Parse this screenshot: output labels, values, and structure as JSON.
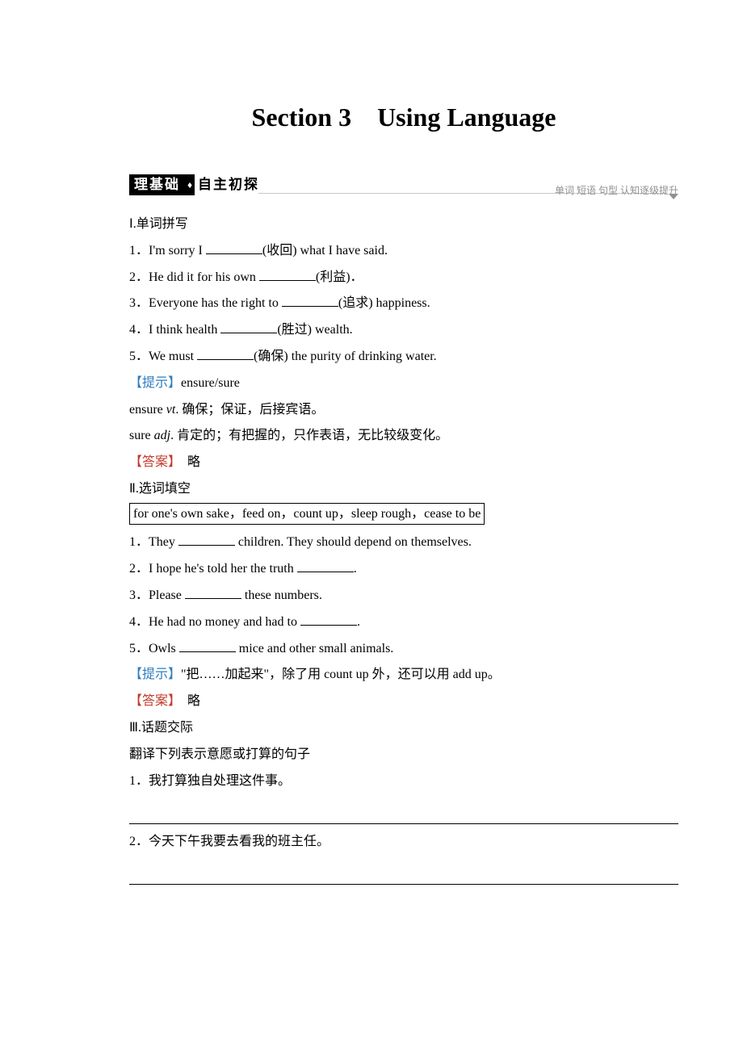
{
  "title": "Section 3　Using Language",
  "header": {
    "left_black": "理基础",
    "left_white": "自主初探",
    "right_grey": "单词 短语 句型 认知逐级提升"
  },
  "part1": {
    "heading": "Ⅰ.单词拼写",
    "items": [
      {
        "pre": "1．I'm sorry I ",
        "hint": "(收回)",
        "post": " what I have said."
      },
      {
        "pre": "2．He did it for his own ",
        "hint": "(利益)．",
        "post": ""
      },
      {
        "pre": "3．Everyone has the right to ",
        "hint": "(追求)",
        "post": " happiness."
      },
      {
        "pre": "4．I think health ",
        "hint": "(胜过)",
        "post": " wealth."
      },
      {
        "pre": "5．We must ",
        "hint": "(确保)",
        "post": " the purity of drinking water."
      }
    ],
    "hint_label": "【提示】",
    "hint_text": "ensure/sure",
    "hint_lines": [
      {
        "pre": "ensure ",
        "ital": "vt",
        "post": ". 确保；保证，后接宾语。"
      },
      {
        "pre": "sure ",
        "ital": "adj",
        "post": ". 肯定的；有把握的，只作表语，无比较级变化。"
      }
    ],
    "ans_label": "【答案】",
    "ans_text": "　略"
  },
  "part2": {
    "heading": "Ⅱ.选词填空",
    "box": "for one's own sake，feed on，count up，sleep rough，cease to be",
    "items": [
      {
        "pre": "1．They ",
        "post": " children. They should depend on themselves."
      },
      {
        "pre": "2．I hope he's told her the truth ",
        "post": "."
      },
      {
        "pre": "3．Please ",
        "post": " these numbers."
      },
      {
        "pre": "4．He had no money and had to ",
        "post": "."
      },
      {
        "pre": "5．Owls ",
        "post": " mice and other small animals."
      }
    ],
    "hint_label": "【提示】",
    "hint_text": "\"把……加起来\"，除了用 count up 外，还可以用 add up。",
    "ans_label": "【答案】",
    "ans_text": "　略"
  },
  "part3": {
    "heading": "Ⅲ.话题交际",
    "instruction": "翻译下列表示意愿或打算的句子",
    "items": [
      "1．我打算独自处理这件事。",
      "2．今天下午我要去看我的班主任。"
    ]
  },
  "colors": {
    "hint": "#2e7cbe",
    "answer": "#c0392b",
    "grey": "#909090"
  }
}
